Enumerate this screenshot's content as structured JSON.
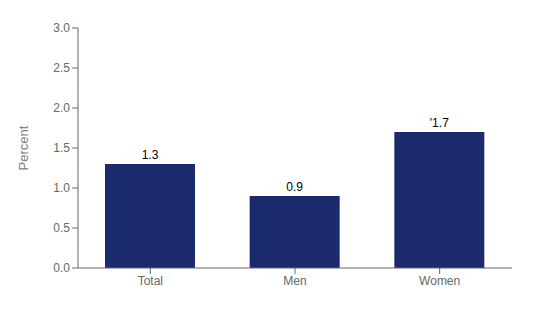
{
  "chart_data": {
    "type": "bar",
    "categories": [
      "Total",
      "Men",
      "Women"
    ],
    "values": [
      1.3,
      0.9,
      1.7
    ],
    "value_labels": [
      "1.3",
      "0.9",
      "'1.7"
    ],
    "data_labels": true,
    "color": "#1B2A6B",
    "ylabel": "Percent",
    "ylim": [
      0,
      3.0
    ],
    "yticks": [
      {
        "value": 0.0,
        "label": "0.0"
      },
      0.5,
      {
        "value": 1.0,
        "label": "1.0"
      },
      1.5,
      {
        "value": 2.0,
        "label": "2.0"
      },
      2.5,
      {
        "value": 3.0,
        "label": "3.0"
      }
    ],
    "grid": false
  }
}
